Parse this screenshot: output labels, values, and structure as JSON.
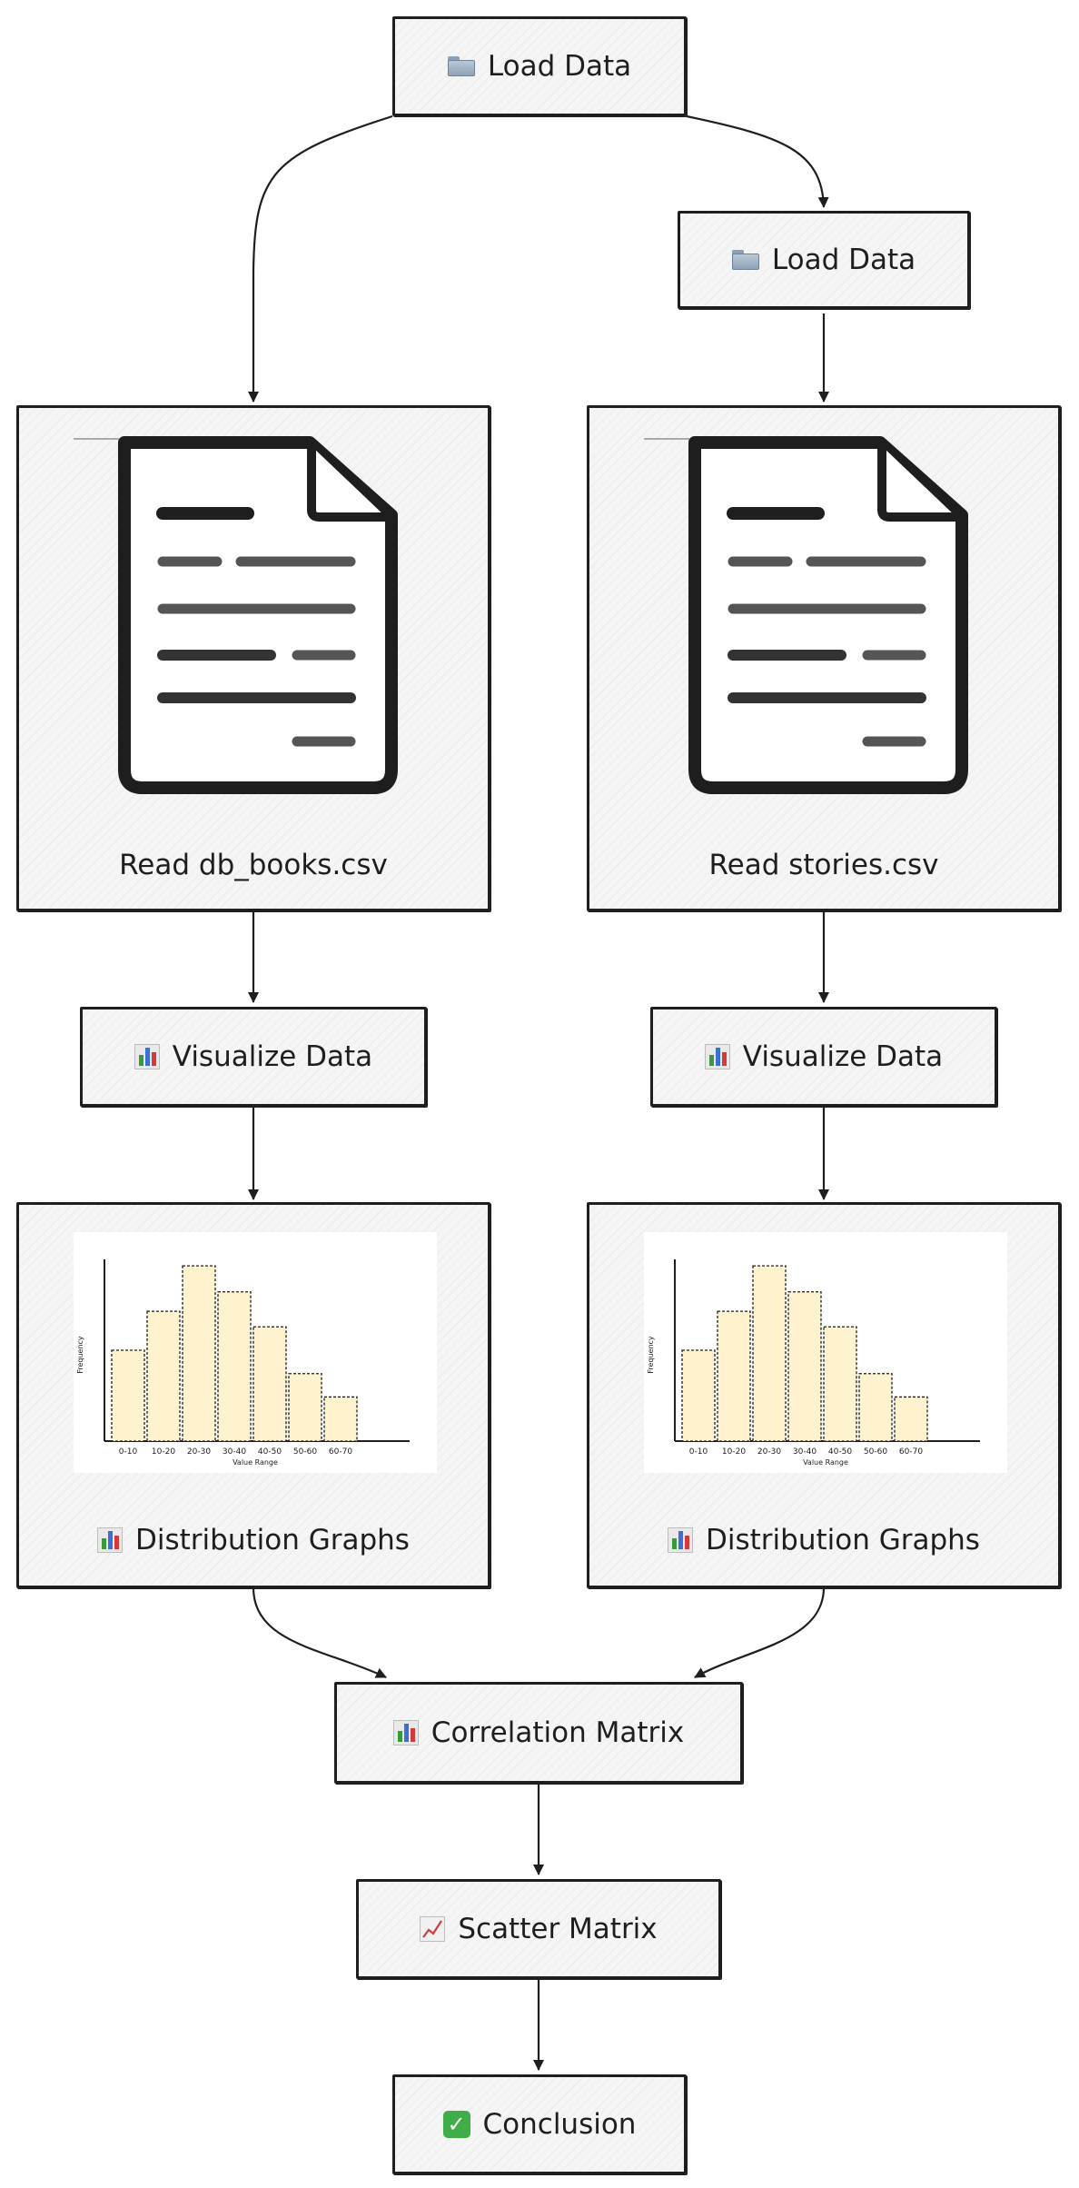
{
  "nodes": {
    "load_data_top": "Load Data",
    "load_data_right": "Load Data",
    "read_books": "Read db_books.csv",
    "read_stories": "Read stories.csv",
    "visualize_left": "Visualize Data",
    "visualize_right": "Visualize Data",
    "distribution_left": "Distribution Graphs",
    "distribution_right": "Distribution Graphs",
    "correlation": "Correlation Matrix",
    "scatter": "Scatter Matrix",
    "conclusion": "Conclusion"
  },
  "icons": {
    "load": "folder-icon",
    "visualize": "bar-chart-icon",
    "scatter": "line-chart-icon",
    "conclusion": "check-mark-icon"
  },
  "histogram": {
    "type": "bar",
    "ylabel": "Frequency",
    "xlabel": "Value Range",
    "categories": [
      "0-10",
      "10-20",
      "20-30",
      "30-40",
      "40-50",
      "50-60",
      "60-70"
    ],
    "values": [
      7,
      10,
      13.5,
      11.5,
      8.8,
      5.2,
      3.4
    ],
    "bar_color": "#fff3cf"
  },
  "colors": {
    "stroke": "#1e1e1e",
    "fill": "#f5f5f5",
    "check": "#3fae49"
  }
}
